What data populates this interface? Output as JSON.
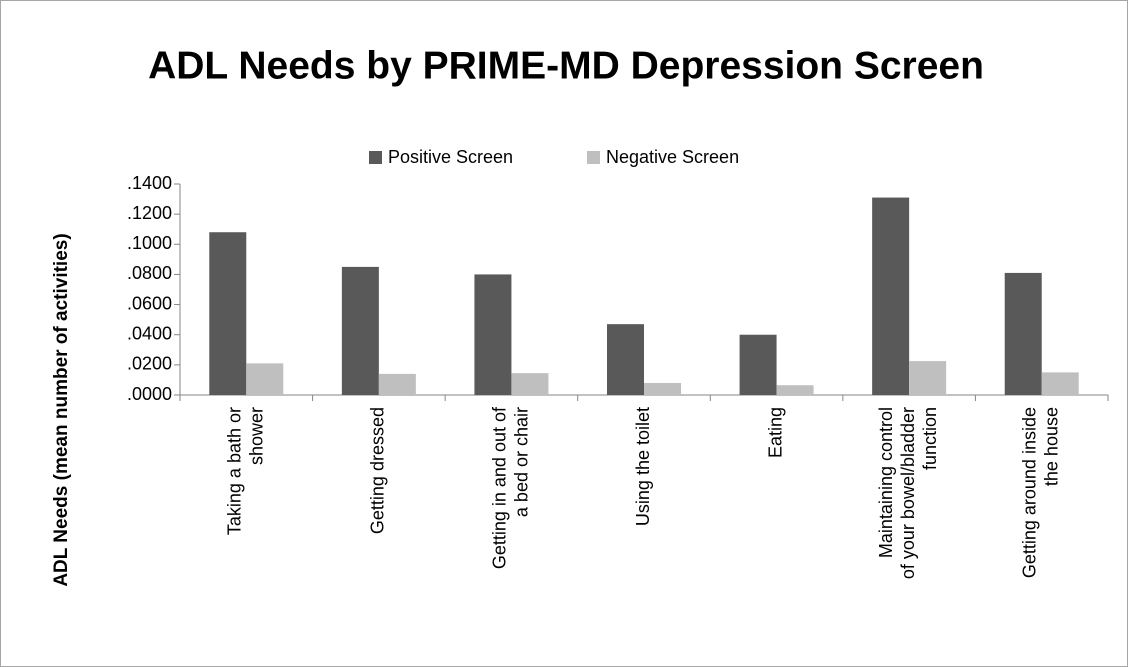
{
  "chart_data": {
    "type": "bar",
    "title": "ADL Needs by PRIME-MD Depression Screen",
    "y_label": "ADL Needs (mean number of activities)",
    "categories": [
      "Taking a bath or shower",
      "Getting dressed",
      "Getting in and out of a bed or chair",
      "Using the toilet",
      "Eating",
      "Maintaining control of your bowel/bladder function",
      "Getting around inside the house"
    ],
    "series": [
      {
        "name": "Positive Screen",
        "color": "#595959",
        "values": [
          0.108,
          0.085,
          0.08,
          0.047,
          0.04,
          0.131,
          0.081
        ]
      },
      {
        "name": "Negative Screen",
        "color": "#bfbfbf",
        "values": [
          0.021,
          0.014,
          0.0145,
          0.008,
          0.0065,
          0.0225,
          0.015
        ]
      }
    ],
    "ylim": [
      0,
      0.14
    ],
    "yticks": [
      {
        "value": 0,
        "label": ".0000"
      },
      {
        "value": 0.02,
        "label": ".0200"
      },
      {
        "value": 0.04,
        "label": ".0400"
      },
      {
        "value": 0.06,
        "label": ".0600"
      },
      {
        "value": 0.08,
        "label": ".0800"
      },
      {
        "value": 0.1,
        "label": ".1000"
      },
      {
        "value": 0.12,
        "label": ".1200"
      },
      {
        "value": 0.14,
        "label": ".1400"
      }
    ],
    "legend": "top",
    "grid": false
  }
}
